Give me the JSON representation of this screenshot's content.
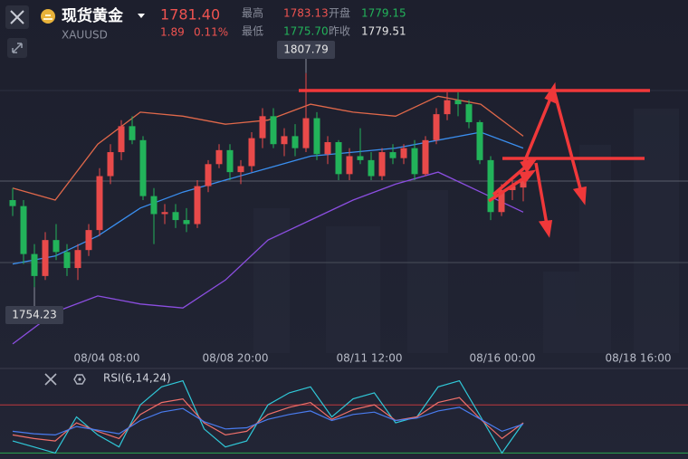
{
  "header": {
    "name": "现货黄金",
    "symbol": "XAUUSD",
    "price": "1781.40",
    "change": "1.89",
    "change_pct": "0.11%",
    "stats": [
      {
        "label": "最高",
        "value": "1783.13"
      },
      {
        "label": "开盘",
        "value": "1779.15"
      },
      {
        "label": "最低",
        "value": "1775.70"
      },
      {
        "label": "昨收",
        "value": "1779.51"
      }
    ]
  },
  "chart": {
    "type": "candlestick",
    "ylim": [
      1739.3,
      1815.2
    ],
    "up_color": "#e84a4a",
    "down_color": "#22b35a",
    "x_labels": [
      "08/04 08:00",
      "08/08 20:00",
      "08/11 12:00",
      "08/16 00:00",
      "08/18 16:00"
    ],
    "candles": [
      [
        1776.0,
        1779.0,
        1772.0,
        1774.5
      ],
      [
        1774.5,
        1776.0,
        1760.0,
        1762.5
      ],
      [
        1762.5,
        1765.0,
        1754.23,
        1757.0
      ],
      [
        1757.0,
        1768.0,
        1756.0,
        1766.0
      ],
      [
        1766.0,
        1770.0,
        1761.0,
        1763.0
      ],
      [
        1763.0,
        1765.0,
        1757.0,
        1759.0
      ],
      [
        1759.0,
        1765.0,
        1756.0,
        1763.5
      ],
      [
        1763.5,
        1770.0,
        1762.0,
        1768.5
      ],
      [
        1768.5,
        1784.0,
        1767.0,
        1782.0
      ],
      [
        1782.0,
        1790.0,
        1780.0,
        1788.0
      ],
      [
        1788.0,
        1796.0,
        1786.0,
        1794.5
      ],
      [
        1794.5,
        1797.0,
        1790.0,
        1791.0
      ],
      [
        1791.0,
        1792.0,
        1776.0,
        1777.0
      ],
      [
        1777.0,
        1779.0,
        1765.0,
        1772.5
      ],
      [
        1772.5,
        1775.0,
        1770.0,
        1773.0
      ],
      [
        1773.0,
        1775.0,
        1769.0,
        1771.0
      ],
      [
        1771.0,
        1774.0,
        1768.0,
        1770.0
      ],
      [
        1770.0,
        1781.0,
        1769.0,
        1779.5
      ],
      [
        1779.5,
        1786.0,
        1778.0,
        1785.0
      ],
      [
        1785.0,
        1790.0,
        1784.0,
        1788.5
      ],
      [
        1788.5,
        1790.0,
        1781.0,
        1783.0
      ],
      [
        1783.0,
        1786.0,
        1780.0,
        1784.5
      ],
      [
        1784.5,
        1793.0,
        1783.0,
        1791.5
      ],
      [
        1791.5,
        1799.0,
        1789.0,
        1797.0
      ],
      [
        1797.0,
        1799.0,
        1789.0,
        1790.0
      ],
      [
        1790.0,
        1794.0,
        1787.0,
        1792.0
      ],
      [
        1792.0,
        1795.0,
        1787.0,
        1789.0
      ],
      [
        1789.0,
        1807.79,
        1788.0,
        1796.5
      ],
      [
        1796.5,
        1798.0,
        1786.0,
        1787.5
      ],
      [
        1787.5,
        1792.0,
        1785.0,
        1790.5
      ],
      [
        1790.5,
        1791.0,
        1781.0,
        1782.5
      ],
      [
        1782.5,
        1789.0,
        1781.0,
        1787.0
      ],
      [
        1787.0,
        1794.0,
        1785.0,
        1786.0
      ],
      [
        1786.0,
        1788.0,
        1781.0,
        1782.0
      ],
      [
        1782.0,
        1789.0,
        1781.0,
        1788.0
      ],
      [
        1788.0,
        1790.0,
        1785.0,
        1786.5
      ],
      [
        1786.5,
        1790.0,
        1785.0,
        1789.0
      ],
      [
        1789.0,
        1791.0,
        1781.0,
        1782.5
      ],
      [
        1782.5,
        1792.0,
        1782.0,
        1791.0
      ],
      [
        1791.0,
        1799.0,
        1790.0,
        1797.5
      ],
      [
        1797.5,
        1803.0,
        1796.0,
        1801.0
      ],
      [
        1801.0,
        1803.0,
        1797.0,
        1800.0
      ],
      [
        1800.0,
        1801.0,
        1794.0,
        1795.5
      ],
      [
        1795.5,
        1796.0,
        1785.0,
        1786.0
      ],
      [
        1786.0,
        1787.0,
        1771.0,
        1773.0
      ],
      [
        1773.0,
        1780.0,
        1772.0,
        1778.5
      ],
      [
        1778.5,
        1781.0,
        1776.0,
        1779.5
      ],
      [
        1779.15,
        1783.13,
        1775.7,
        1781.4
      ]
    ],
    "overlays": [
      {
        "color": "#e0684a",
        "values": [
          1779,
          1776,
          1790,
          1798,
          1797,
          1795,
          1796,
          1800,
          1798,
          1797,
          1802,
          1800,
          1792
        ]
      },
      {
        "color": "#3a8ff0",
        "values": [
          1760,
          1762,
          1767,
          1774,
          1778,
          1781,
          1784,
          1787,
          1788,
          1789,
          1791,
          1793,
          1789
        ]
      },
      {
        "color": "#8b4ee0",
        "values": [
          1740,
          1748,
          1752,
          1750,
          1749,
          1756,
          1766,
          1771,
          1776,
          1780,
          1783,
          1778,
          1773
        ]
      }
    ]
  },
  "rsi": {
    "title": "RSI(6,14,24)",
    "ylim": [
      25,
      95
    ],
    "levels": [
      {
        "value": 70,
        "color": "#c0393f"
      },
      {
        "value": 30,
        "color": "#2aa84f"
      }
    ],
    "series": [
      {
        "color": "#30c8d8",
        "values": [
          40,
          35,
          30,
          60,
          45,
          35,
          70,
          85,
          90,
          50,
          35,
          40,
          70,
          80,
          85,
          60,
          75,
          80,
          55,
          60,
          85,
          90,
          60,
          30,
          55
        ]
      },
      {
        "color": "#f0706a",
        "values": [
          45,
          42,
          40,
          55,
          48,
          42,
          62,
          72,
          75,
          55,
          45,
          48,
          62,
          68,
          72,
          58,
          66,
          70,
          57,
          60,
          72,
          76,
          58,
          42,
          55
        ]
      },
      {
        "color": "#4a7cf0",
        "values": [
          48,
          46,
          45,
          52,
          49,
          46,
          57,
          64,
          67,
          56,
          50,
          51,
          58,
          62,
          65,
          57,
          62,
          64,
          57,
          59,
          65,
          68,
          58,
          48,
          54
        ]
      }
    ]
  }
}
